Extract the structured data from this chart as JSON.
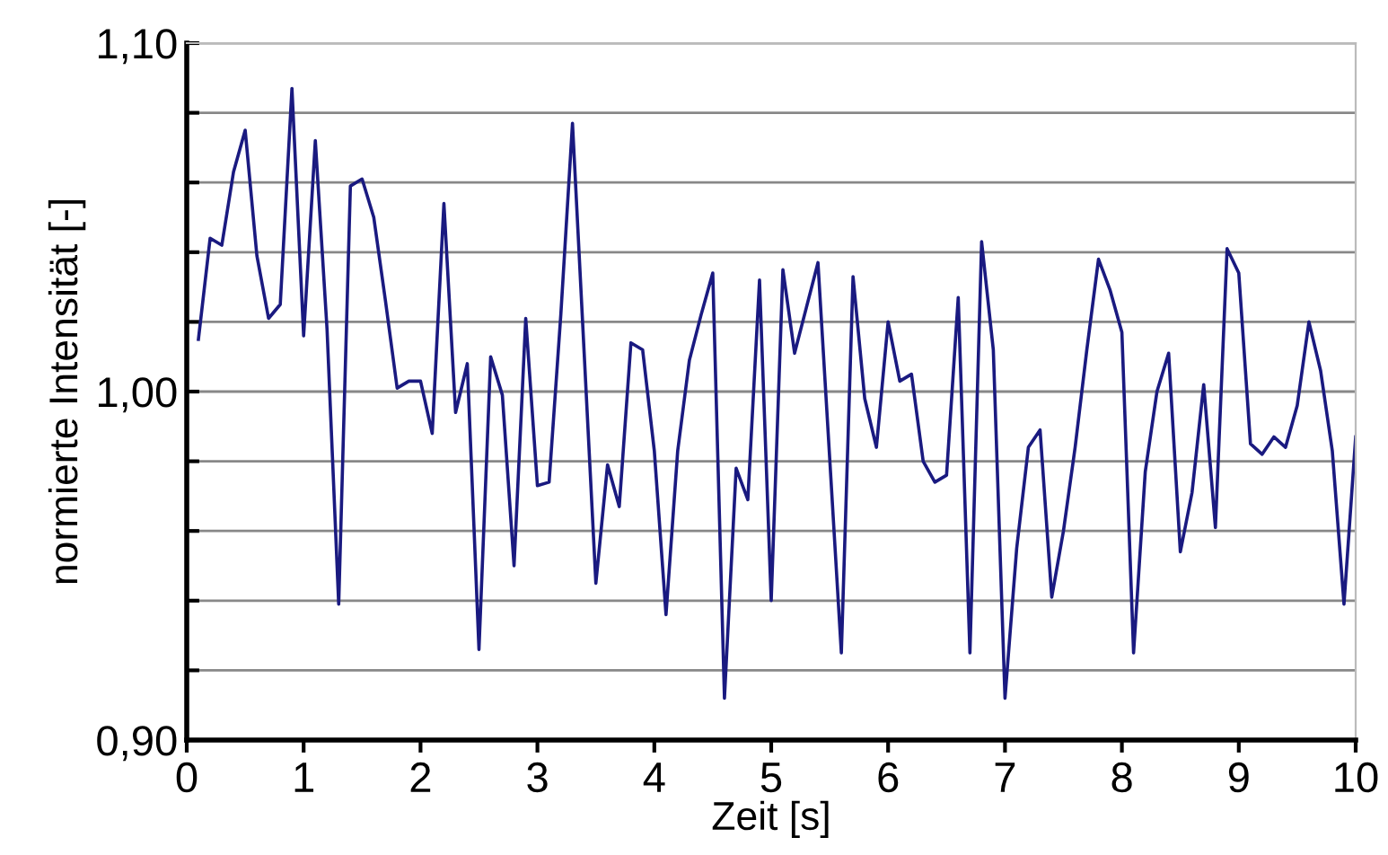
{
  "chart_data": {
    "type": "line",
    "xlabel": "Zeit [s]",
    "ylabel": "normierte Intensität [-]",
    "x": [
      0.1,
      0.2,
      0.3,
      0.4,
      0.5,
      0.6,
      0.7,
      0.8,
      0.9,
      1.0,
      1.1,
      1.2,
      1.3,
      1.4,
      1.5,
      1.6,
      1.7,
      1.8,
      1.9,
      2.0,
      2.1,
      2.2,
      2.3,
      2.4,
      2.5,
      2.6,
      2.7,
      2.8,
      2.9,
      3.0,
      3.1,
      3.2,
      3.3,
      3.4,
      3.5,
      3.6,
      3.7,
      3.8,
      3.9,
      4.0,
      4.1,
      4.2,
      4.3,
      4.4,
      4.5,
      4.6,
      4.7,
      4.8,
      4.9,
      5.0,
      5.1,
      5.2,
      5.3,
      5.4,
      5.5,
      5.6,
      5.7,
      5.8,
      5.9,
      6.0,
      6.1,
      6.2,
      6.3,
      6.4,
      6.5,
      6.6,
      6.7,
      6.8,
      6.9,
      7.0,
      7.1,
      7.2,
      7.3,
      7.4,
      7.5,
      7.6,
      7.7,
      7.8,
      7.9,
      8.0,
      8.1,
      8.2,
      8.3,
      8.4,
      8.5,
      8.6,
      8.7,
      8.8,
      8.9,
      9.0,
      9.1,
      9.2,
      9.3,
      9.4,
      9.5,
      9.6,
      9.7,
      9.8,
      9.9,
      10.0
    ],
    "series": [
      {
        "color": "#1a1a80",
        "values": [
          1.015,
          1.044,
          1.042,
          1.063,
          1.075,
          1.039,
          1.021,
          1.025,
          1.087,
          1.016,
          1.072,
          1.018,
          0.939,
          1.059,
          1.061,
          1.05,
          1.026,
          1.001,
          1.003,
          1.003,
          0.988,
          1.054,
          0.994,
          1.008,
          0.926,
          1.01,
          0.999,
          0.95,
          1.021,
          0.973,
          0.974,
          1.022,
          1.077,
          1.011,
          0.945,
          0.979,
          0.967,
          1.014,
          1.012,
          0.983,
          0.936,
          0.983,
          1.009,
          1.022,
          1.034,
          0.912,
          0.978,
          0.969,
          1.032,
          0.94,
          1.035,
          1.011,
          1.024,
          1.037,
          0.981,
          0.925,
          1.033,
          0.998,
          0.984,
          1.02,
          1.003,
          1.005,
          0.98,
          0.974,
          0.976,
          1.027,
          0.925,
          1.043,
          1.012,
          0.912,
          0.955,
          0.984,
          0.989,
          0.941,
          0.96,
          0.984,
          1.012,
          1.038,
          1.029,
          1.017,
          0.925,
          0.977,
          1.0,
          1.011,
          0.954,
          0.971,
          1.002,
          0.961,
          1.041,
          1.034,
          0.985,
          0.982,
          0.987,
          0.984,
          0.996,
          1.02,
          1.006,
          0.983,
          0.939,
          0.987
        ]
      }
    ],
    "xlim": [
      0,
      10
    ],
    "xticks": [
      0,
      1,
      2,
      3,
      4,
      5,
      6,
      7,
      8,
      9,
      10
    ],
    "ylim": [
      0.9,
      1.1
    ],
    "yticks": [
      {
        "value": 0.9,
        "label": "0,90"
      },
      {
        "value": 0.92,
        "label": null
      },
      {
        "value": 0.94,
        "label": null
      },
      {
        "value": 0.96,
        "label": null
      },
      {
        "value": 0.98,
        "label": null
      },
      {
        "value": 1.0,
        "label": "1,00"
      },
      {
        "value": 1.02,
        "label": null
      },
      {
        "value": 1.04,
        "label": null
      },
      {
        "value": 1.06,
        "label": null
      },
      {
        "value": 1.08,
        "label": null
      },
      {
        "value": 1.1,
        "label": "1,10"
      }
    ],
    "grid": "y",
    "marker": "none",
    "line_style": "solid",
    "legend": false
  }
}
